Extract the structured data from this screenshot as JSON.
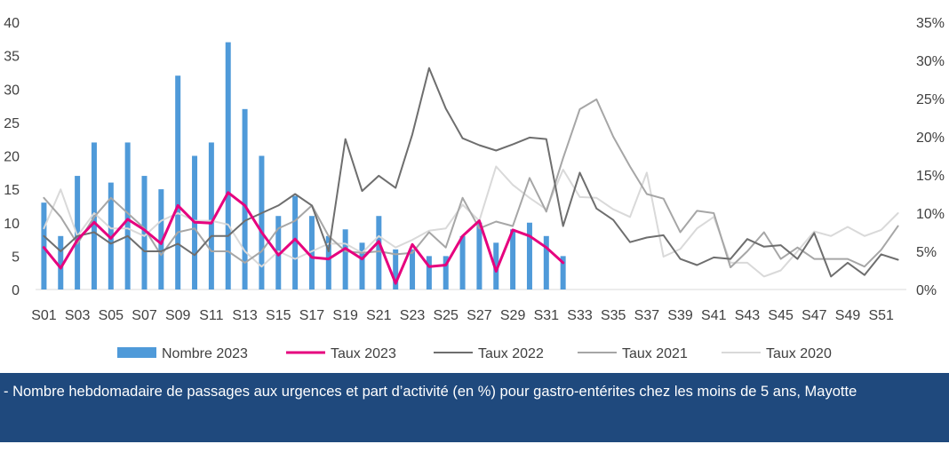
{
  "chart_data": {
    "type": "bar+line",
    "title": "",
    "x": [
      "S01",
      "S02",
      "S03",
      "S04",
      "S05",
      "S06",
      "S07",
      "S08",
      "S09",
      "S10",
      "S11",
      "S12",
      "S13",
      "S14",
      "S15",
      "S16",
      "S17",
      "S18",
      "S19",
      "S20",
      "S21",
      "S22",
      "S23",
      "S24",
      "S25",
      "S26",
      "S27",
      "S28",
      "S29",
      "S30",
      "S31",
      "S32",
      "S33",
      "S34",
      "S35",
      "S36",
      "S37",
      "S38",
      "S39",
      "S40",
      "S41",
      "S42",
      "S43",
      "S44",
      "S45",
      "S46",
      "S47",
      "S48",
      "S49",
      "S50",
      "S51",
      "S52"
    ],
    "x_tick_labels": [
      "S01",
      "S03",
      "S05",
      "S07",
      "S09",
      "S11",
      "S13",
      "S15",
      "S17",
      "S19",
      "S21",
      "S23",
      "S25",
      "S27",
      "S29",
      "S31",
      "S33",
      "S35",
      "S37",
      "S39",
      "S41",
      "S43",
      "S45",
      "S47",
      "S49",
      "S51"
    ],
    "y_left": {
      "range": [
        0,
        40
      ],
      "ticks": [
        "0",
        "5",
        "10",
        "15",
        "20",
        "25",
        "30",
        "35",
        "40"
      ]
    },
    "y_right": {
      "range": [
        0,
        0.35
      ],
      "ticks": [
        "0%",
        "5%",
        "10%",
        "15%",
        "20%",
        "25%",
        "30%",
        "35%"
      ]
    },
    "grid": false,
    "legend_position": "bottom",
    "bar_series": {
      "name": "Nombre 2023",
      "color": "#4f9ad9",
      "axis": "left",
      "values": [
        13,
        8,
        17,
        22,
        16,
        22,
        17,
        15,
        32,
        20,
        22,
        37,
        27,
        20,
        11,
        14,
        11,
        8,
        9,
        7,
        11,
        6,
        6,
        5,
        5,
        8,
        10,
        7,
        9,
        10,
        8,
        5
      ]
    },
    "line_series": [
      {
        "name": "Taux 2023",
        "color": "#e6007e",
        "width": 3,
        "axis": "right",
        "values": [
          0.055,
          0.028,
          0.065,
          0.088,
          0.067,
          0.092,
          0.078,
          0.06,
          0.11,
          0.088,
          0.087,
          0.127,
          0.11,
          0.075,
          0.045,
          0.066,
          0.042,
          0.04,
          0.054,
          0.04,
          0.063,
          0.008,
          0.059,
          0.03,
          0.032,
          0.07,
          0.09,
          0.024,
          0.078,
          0.07,
          0.055,
          0.035
        ]
      },
      {
        "name": "Taux 2022",
        "color": "#6e6e6e",
        "width": 2,
        "axis": "right",
        "values": [
          0.07,
          0.05,
          0.07,
          0.075,
          0.06,
          0.07,
          0.05,
          0.05,
          0.06,
          0.045,
          0.07,
          0.07,
          0.09,
          0.1,
          0.11,
          0.125,
          0.11,
          0.05,
          0.197,
          0.129,
          0.149,
          0.133,
          0.203,
          0.29,
          0.237,
          0.198,
          0.189,
          0.182,
          0.19,
          0.199,
          0.197,
          0.083,
          0.153,
          0.106,
          0.091,
          0.062,
          0.068,
          0.071,
          0.04,
          0.032,
          0.042,
          0.04,
          0.066,
          0.056,
          0.058,
          0.04,
          0.074,
          0.017,
          0.035,
          0.019,
          0.046,
          0.039
        ]
      },
      {
        "name": "Taux 2021",
        "color": "#a6a6a6",
        "width": 2,
        "axis": "right",
        "values": [
          0.12,
          0.095,
          0.06,
          0.095,
          0.12,
          0.1,
          0.08,
          0.045,
          0.075,
          0.08,
          0.05,
          0.05,
          0.035,
          0.05,
          0.08,
          0.09,
          0.11,
          0.07,
          0.05,
          0.048,
          0.05,
          0.046,
          0.048,
          0.075,
          0.055,
          0.12,
          0.08,
          0.089,
          0.083,
          0.146,
          0.102,
          0.172,
          0.236,
          0.249,
          0.2,
          0.161,
          0.125,
          0.119,
          0.075,
          0.103,
          0.1,
          0.029,
          0.05,
          0.075,
          0.04,
          0.055,
          0.04,
          0.04,
          0.04,
          0.03,
          0.052,
          0.083
        ]
      },
      {
        "name": "Taux 2020",
        "color": "#d9d9d9",
        "width": 2,
        "axis": "right",
        "values": [
          0.08,
          0.131,
          0.07,
          0.1,
          0.08,
          0.08,
          0.07,
          0.09,
          0.1,
          0.09,
          0.09,
          0.085,
          0.05,
          0.03,
          0.05,
          0.04,
          0.05,
          0.06,
          0.06,
          0.048,
          0.07,
          0.055,
          0.065,
          0.077,
          0.08,
          0.111,
          0.09,
          0.161,
          0.137,
          0.12,
          0.105,
          0.157,
          0.121,
          0.12,
          0.105,
          0.095,
          0.153,
          0.043,
          0.053,
          0.08,
          0.095,
          0.035,
          0.035,
          0.017,
          0.025,
          0.05,
          0.076,
          0.07,
          0.082,
          0.07,
          0.078,
          0.1
        ]
      }
    ]
  },
  "legend": {
    "items": [
      {
        "label": "Nombre 2023",
        "kind": "bar",
        "color": "#4f9ad9"
      },
      {
        "label": "Taux 2023",
        "kind": "line",
        "color": "#e6007e"
      },
      {
        "label": "Taux 2022",
        "kind": "line",
        "color": "#6e6e6e"
      },
      {
        "label": "Taux 2021",
        "kind": "line",
        "color": "#a6a6a6"
      },
      {
        "label": "Taux 2020",
        "kind": "line",
        "color": "#d9d9d9"
      }
    ]
  },
  "caption": {
    "text": "-  Nombre hebdomadaire de passages aux urgences et part d’activité (en %) pour gastro-entérites chez les moins de 5 ans, Mayotte",
    "background": "#1f497d",
    "color": "#ffffff"
  }
}
